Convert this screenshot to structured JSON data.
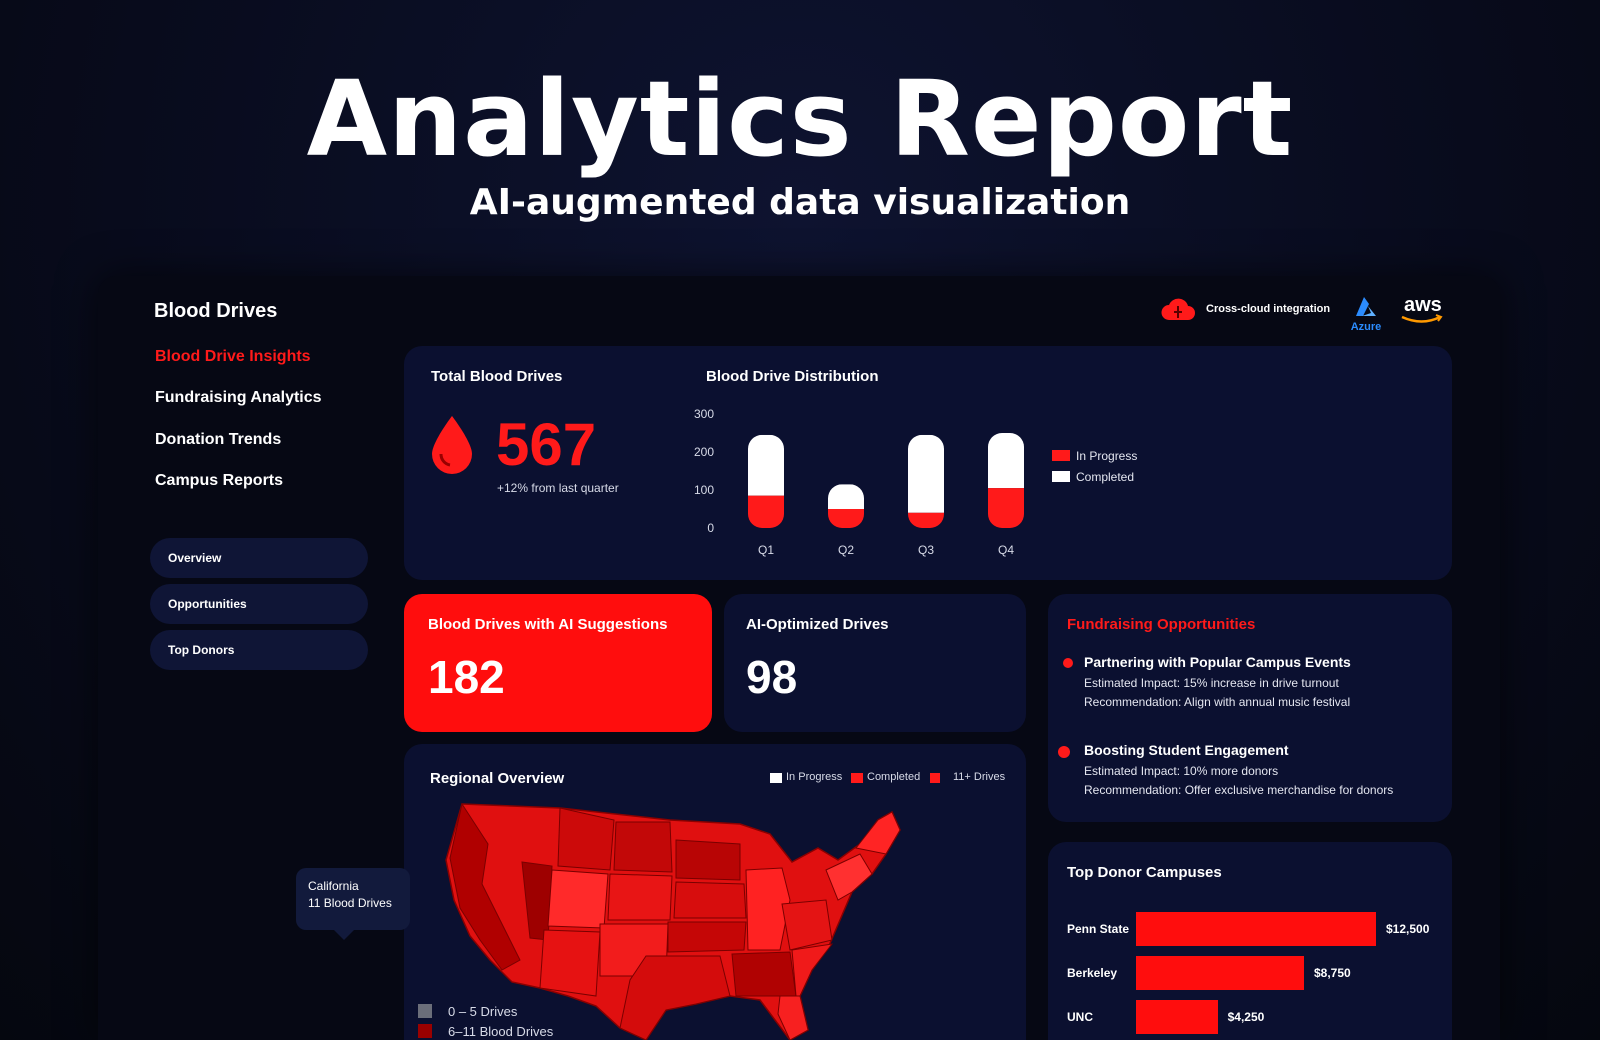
{
  "hero": {
    "title": "Analytics Report",
    "subtitle": "AI-augmented data visualization"
  },
  "sidebar": {
    "title": "Blood Drives",
    "items": [
      {
        "label": "Blood Drive Insights",
        "active": true
      },
      {
        "label": "Fundraising Analytics",
        "active": false
      },
      {
        "label": "Donation Trends",
        "active": false
      },
      {
        "label": "Campus Reports",
        "active": false
      }
    ],
    "pills": [
      {
        "label": "Overview"
      },
      {
        "label": "Opportunities"
      },
      {
        "label": "Top Donors"
      }
    ]
  },
  "header": {
    "cloud_label": "Cross-cloud integration",
    "azure_label": "Azure",
    "aws_label": "aws"
  },
  "total_drives": {
    "title": "Total Blood Drives",
    "value": "567",
    "change": "+12% from last quarter"
  },
  "distribution": {
    "title": "Blood Drive Distribution",
    "legend": [
      "In Progress",
      "Completed"
    ]
  },
  "ai_suggestions": {
    "title": "Blood Drives with AI Suggestions",
    "value": "182"
  },
  "ai_optimized": {
    "title": "AI-Optimized Drives",
    "value": "98"
  },
  "fundraising": {
    "title": "Fundraising Opportunities",
    "items": [
      {
        "title": "Partnering with Popular Campus Events",
        "impact": "Estimated Impact: 15% increase in drive turnout",
        "recommendation": "Recommendation: Align with annual music festival"
      },
      {
        "title": "Boosting Student Engagement",
        "impact": "Estimated Impact: 10% more donors",
        "recommendation": "Recommendation: Offer exclusive merchandise for donors"
      }
    ]
  },
  "regional": {
    "title": "Regional Overview",
    "legend": [
      "In Progress",
      "Completed",
      "11+ Drives"
    ],
    "tooltip": {
      "state": "California",
      "detail": "11 Blood Drives"
    },
    "scale": [
      "0 – 5 Drives",
      "6–11 Blood Drives"
    ]
  },
  "top_donors": {
    "title": "Top Donor Campuses"
  },
  "chart_data": [
    {
      "type": "bar",
      "title": "Blood Drive Distribution",
      "categories": [
        "Q1",
        "Q2",
        "Q3",
        "Q4"
      ],
      "series": [
        {
          "name": "In Progress",
          "values": [
            85,
            50,
            40,
            105
          ],
          "color": "#ff1a1a"
        },
        {
          "name": "Completed",
          "values": [
            160,
            65,
            205,
            145
          ],
          "color": "#ffffff"
        }
      ],
      "stacked": true,
      "ylim": [
        0,
        300
      ],
      "yticks": [
        0,
        100,
        200,
        300
      ],
      "legend": "right"
    },
    {
      "type": "bar",
      "orientation": "horizontal",
      "title": "Top Donor Campuses",
      "categories": [
        "Penn State",
        "Berkeley",
        "UNC"
      ],
      "values": [
        12500,
        8750,
        4250
      ],
      "value_labels": [
        "$12,500",
        "$8,750",
        "$4,250"
      ],
      "color": "#ff0d0d"
    }
  ]
}
